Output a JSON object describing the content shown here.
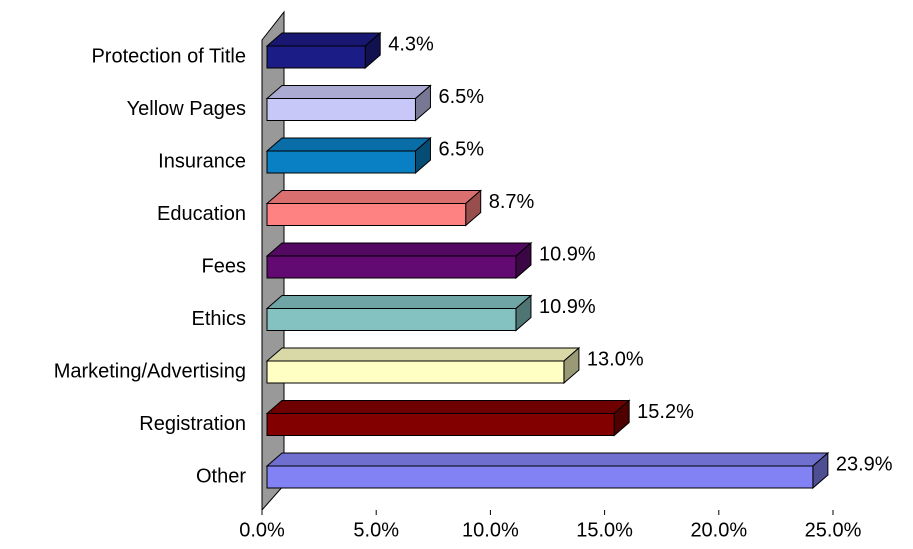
{
  "chart_data": {
    "type": "bar3d_horizontal",
    "categories": [
      "Protection of Title",
      "Yellow Pages",
      "Insurance",
      "Education",
      "Fees",
      "Ethics",
      "Marketing/Advertising",
      "Registration",
      "Other"
    ],
    "values": [
      4.3,
      6.5,
      6.5,
      8.7,
      10.9,
      10.9,
      13.0,
      15.2,
      23.9
    ],
    "value_labels": [
      "4.3%",
      "6.5%",
      "6.5%",
      "8.7%",
      "10.9%",
      "10.9%",
      "13.0%",
      "15.2%",
      "23.9%"
    ],
    "colors": [
      "#1c1c86",
      "#c8c8f8",
      "#0a80c4",
      "#ff8282",
      "#620a72",
      "#84c2c2",
      "#ffffc4",
      "#820000",
      "#8282f4"
    ],
    "xlim": [
      0,
      25
    ],
    "xticks": [
      {
        "value": 0,
        "label": "0.0%"
      },
      {
        "value": 5,
        "label": "5.0%"
      },
      {
        "value": 10,
        "label": "10.0%"
      },
      {
        "value": 15,
        "label": "15.0%"
      },
      {
        "value": 20,
        "label": "20.0%"
      },
      {
        "value": 25,
        "label": "25.0%"
      }
    ],
    "grid": false
  }
}
